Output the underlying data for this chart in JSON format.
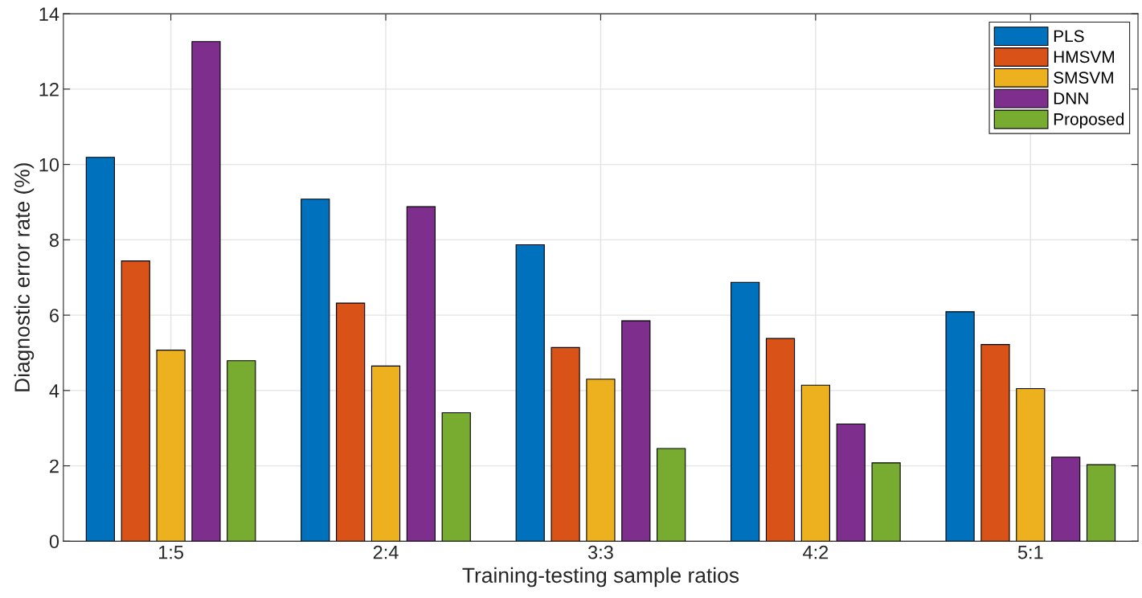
{
  "chart_data": {
    "type": "bar",
    "xlabel": "Training-testing sample ratios",
    "ylabel": "Diagnostic error rate (%)",
    "categories": [
      "1:5",
      "2:4",
      "3:3",
      "4:2",
      "5:1"
    ],
    "series": [
      {
        "name": "PLS",
        "color": "#0072bd",
        "values": [
          10.19,
          9.08,
          7.87,
          6.87,
          6.09
        ]
      },
      {
        "name": "HMSVM",
        "color": "#d95319",
        "values": [
          7.44,
          6.32,
          5.14,
          5.38,
          5.22
        ]
      },
      {
        "name": "SMSVM",
        "color": "#edb120",
        "values": [
          5.07,
          4.65,
          4.3,
          4.14,
          4.05
        ]
      },
      {
        "name": "DNN",
        "color": "#7e2f8e",
        "values": [
          13.26,
          8.88,
          5.85,
          3.11,
          2.23
        ]
      },
      {
        "name": "Proposed",
        "color": "#77ac30",
        "values": [
          4.79,
          3.41,
          2.46,
          2.08,
          2.03
        ]
      }
    ],
    "ylim": [
      0,
      14
    ],
    "yticks": [
      0,
      2,
      4,
      6,
      8,
      10,
      12,
      14
    ],
    "grid": true,
    "legend": "top right"
  }
}
